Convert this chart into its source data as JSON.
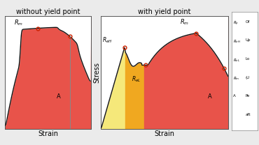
{
  "bg_color": "#ebebeb",
  "red_fill": "#e8534a",
  "yellow_fill": "#f5e87a",
  "orange_fill": "#f0a820",
  "title_left": "without yield point",
  "title_right": "with yield point",
  "xlabel": "Strain",
  "ylabel": "Stress",
  "annotation_color": "#cc2200",
  "curve_color": "#111111",
  "marker_face": "none",
  "marker_edge": "#cc2200",
  "legend_symbols": [
    "$R_p$",
    "$R_{eH}$",
    "$R_{eL}$",
    "$R_m$",
    "A",
    ""
  ],
  "legend_descs": [
    "Of",
    "Up",
    "Lo",
    "(U",
    "Pe",
    "aft"
  ]
}
